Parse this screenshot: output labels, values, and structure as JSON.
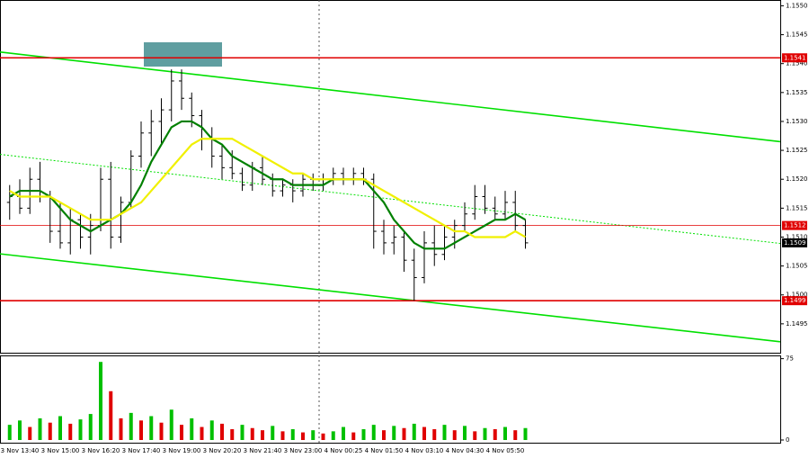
{
  "chart_data": [
    {
      "type": "ohlc",
      "categories": [
        null,
        "3 Nov 13:40",
        null,
        null,
        null,
        "3 Nov 15:00",
        null,
        null,
        null,
        "3 Nov 16:20",
        null,
        null,
        null,
        "3 Nov 17:40",
        null,
        null,
        null,
        "3 Nov 19:00",
        null,
        null,
        null,
        "3 Nov 20:20",
        null,
        null,
        null,
        "3 Nov 21:40",
        null,
        null,
        null,
        "3 Nov 23:00",
        null,
        null,
        null,
        "4 Nov 00:25",
        null,
        null,
        null,
        "4 Nov 01:50",
        null,
        null,
        null,
        "4 Nov 03:10",
        null,
        null,
        null,
        "4 Nov 04:30",
        null,
        null,
        null,
        "4 Nov 05:50",
        null,
        null
      ],
      "ohlc": [
        [
          1.1516,
          1.1519,
          1.1513,
          1.1517
        ],
        [
          1.1517,
          1.152,
          1.1514,
          1.1515
        ],
        [
          1.1515,
          1.1522,
          1.1514,
          1.152
        ],
        [
          1.152,
          1.1523,
          1.1516,
          1.1517
        ],
        [
          1.1517,
          1.1518,
          1.1509,
          1.1511
        ],
        [
          1.1511,
          1.1516,
          1.1508,
          1.1509
        ],
        [
          1.1509,
          1.1515,
          1.1507,
          1.1513
        ],
        [
          1.1513,
          1.1514,
          1.1508,
          1.151
        ],
        [
          1.151,
          1.1514,
          1.1507,
          1.1512
        ],
        [
          1.1512,
          1.1522,
          1.1511,
          1.152
        ],
        [
          1.152,
          1.1523,
          1.1508,
          1.151
        ],
        [
          1.151,
          1.1517,
          1.1509,
          1.1516
        ],
        [
          1.1516,
          1.1525,
          1.1515,
          1.1524
        ],
        [
          1.1524,
          1.153,
          1.1522,
          1.1528
        ],
        [
          1.1528,
          1.1532,
          1.1524,
          1.153
        ],
        [
          1.153,
          1.1534,
          1.1526,
          1.1532
        ],
        [
          1.1532,
          1.1539,
          1.153,
          1.1537
        ],
        [
          1.1537,
          1.1539,
          1.1532,
          1.1534
        ],
        [
          1.1534,
          1.1535,
          1.1529,
          1.1531
        ],
        [
          1.1531,
          1.1532,
          1.1525,
          1.1527
        ],
        [
          1.1527,
          1.1529,
          1.1522,
          1.1524
        ],
        [
          1.1524,
          1.1526,
          1.152,
          1.1522
        ],
        [
          1.1522,
          1.1525,
          1.152,
          1.1521
        ],
        [
          1.1521,
          1.1522,
          1.1518,
          1.1519
        ],
        [
          1.1519,
          1.1523,
          1.1518,
          1.1522
        ],
        [
          1.1522,
          1.1524,
          1.1519,
          1.152
        ],
        [
          1.152,
          1.1521,
          1.1517,
          1.1518
        ],
        [
          1.1518,
          1.152,
          1.1517,
          1.1519
        ],
        [
          1.1519,
          1.152,
          1.1516,
          1.1518
        ],
        [
          1.1518,
          1.1521,
          1.1517,
          1.152
        ],
        [
          1.152,
          1.1521,
          1.1518,
          1.1519
        ],
        [
          1.1519,
          1.1521,
          1.1518,
          1.152
        ],
        [
          1.152,
          1.1522,
          1.1519,
          1.1521
        ],
        [
          1.1521,
          1.1522,
          1.1519,
          1.152
        ],
        [
          1.152,
          1.1522,
          1.1519,
          1.1521
        ],
        [
          1.1521,
          1.1522,
          1.1519,
          1.152
        ],
        [
          1.152,
          1.1521,
          1.1508,
          1.1511
        ],
        [
          1.1511,
          1.1513,
          1.1507,
          1.1509
        ],
        [
          1.1509,
          1.1512,
          1.1507,
          1.151
        ],
        [
          1.151,
          1.1511,
          1.1504,
          1.1506
        ],
        [
          1.1506,
          1.1508,
          1.1499,
          1.1503
        ],
        [
          1.1503,
          1.1511,
          1.1502,
          1.1509
        ],
        [
          1.1509,
          1.1512,
          1.1505,
          1.1507
        ],
        [
          1.1507,
          1.1512,
          1.1506,
          1.151
        ],
        [
          1.151,
          1.1513,
          1.1508,
          1.1512
        ],
        [
          1.1512,
          1.1516,
          1.1511,
          1.1514
        ],
        [
          1.1514,
          1.1519,
          1.1513,
          1.1517
        ],
        [
          1.1517,
          1.1519,
          1.1514,
          1.1515
        ],
        [
          1.1515,
          1.1517,
          1.1513,
          1.1514
        ],
        [
          1.1514,
          1.1518,
          1.1513,
          1.1516
        ],
        [
          1.1516,
          1.1518,
          1.1511,
          1.1512
        ],
        [
          1.1512,
          1.1513,
          1.1508,
          1.1509
        ]
      ],
      "color": "#000000",
      "lines": [
        {
          "color": "#008000",
          "values": [
            1.1517,
            1.1518,
            1.1518,
            1.1518,
            1.1517,
            1.1515,
            1.1513,
            1.1512,
            1.1511,
            1.1512,
            1.1513,
            1.1514,
            1.1516,
            1.1519,
            1.1523,
            1.1526,
            1.1529,
            1.153,
            1.153,
            1.1529,
            1.1527,
            1.1526,
            1.1524,
            1.1523,
            1.1522,
            1.1521,
            1.152,
            1.152,
            1.1519,
            1.1519,
            1.1519,
            1.1519,
            1.152,
            1.152,
            1.152,
            1.152,
            1.1518,
            1.1516,
            1.1513,
            1.1511,
            1.1509,
            1.1508,
            1.1508,
            1.1508,
            1.1509,
            1.151,
            1.1511,
            1.1512,
            1.1513,
            1.1513,
            1.1514,
            1.1513
          ]
        },
        {
          "color": "#f0f000",
          "values": [
            1.1518,
            1.1517,
            1.1517,
            1.1517,
            1.1517,
            1.1516,
            1.1515,
            1.1514,
            1.1513,
            1.1513,
            1.1513,
            1.1514,
            1.1515,
            1.1516,
            1.1518,
            1.152,
            1.1522,
            1.1524,
            1.1526,
            1.1527,
            1.1527,
            1.1527,
            1.1527,
            1.1526,
            1.1525,
            1.1524,
            1.1523,
            1.1522,
            1.1521,
            1.1521,
            1.152,
            1.152,
            1.152,
            1.152,
            1.152,
            1.152,
            1.1519,
            1.1518,
            1.1517,
            1.1516,
            1.1515,
            1.1514,
            1.1513,
            1.1512,
            1.1511,
            1.1511,
            1.151,
            1.151,
            1.151,
            1.151,
            1.1511,
            1.151
          ]
        }
      ],
      "trend_lines": [
        {
          "color": "#00e000",
          "start": 1.1542,
          "end": 1.15265
        },
        {
          "color": "#00e000",
          "start": 1.15071,
          "end": 1.14919
        },
        {
          "color": "#00e000",
          "start": 1.15243,
          "end": 1.15089,
          "dashed": true
        }
      ],
      "levels": [
        {
          "value": 1.1541,
          "color": "#e00000"
        },
        {
          "value": 1.1512,
          "color": "#e00000",
          "thin": true
        },
        {
          "value": 1.1499,
          "color": "#e00000"
        },
        {
          "value": 1.1509,
          "color": "#000000",
          "label_only": true
        }
      ],
      "ylim": [
        1.149,
        1.1551
      ],
      "yticks": [
        {
          "value": 1.155,
          "label": "1.1550"
        },
        {
          "value": 1.1545,
          "label": "1.1545"
        },
        {
          "value": 1.154,
          "label": "1.1540"
        },
        {
          "value": 1.1535,
          "label": "1.1535"
        },
        {
          "value": 1.153,
          "label": "1.1530"
        },
        {
          "value": 1.1525,
          "label": "1.1525"
        },
        {
          "value": 1.152,
          "label": "1.1520"
        },
        {
          "value": 1.1515,
          "label": "1.1515"
        },
        {
          "value": 1.151,
          "label": "1.1510"
        },
        {
          "value": 1.1505,
          "label": "1.1505"
        },
        {
          "value": 1.15,
          "label": "1.1500"
        },
        {
          "value": 1.1495,
          "label": "1.1495"
        }
      ]
    },
    {
      "type": "bar",
      "values": [
        14,
        18,
        12,
        20,
        16,
        22,
        15,
        19,
        24,
        72,
        45,
        20,
        25,
        18,
        22,
        16,
        28,
        14,
        20,
        12,
        18,
        15,
        10,
        14,
        11,
        9,
        13,
        8,
        10,
        7,
        9,
        6,
        8,
        12,
        7,
        10,
        14,
        9,
        13,
        11,
        15,
        12,
        10,
        14,
        9,
        13,
        8,
        11,
        10,
        12,
        9,
        11
      ],
      "up_color": "#00c000",
      "down_color": "#e00000",
      "ylim": [
        0,
        78
      ],
      "yticks": [
        0,
        75
      ]
    }
  ]
}
